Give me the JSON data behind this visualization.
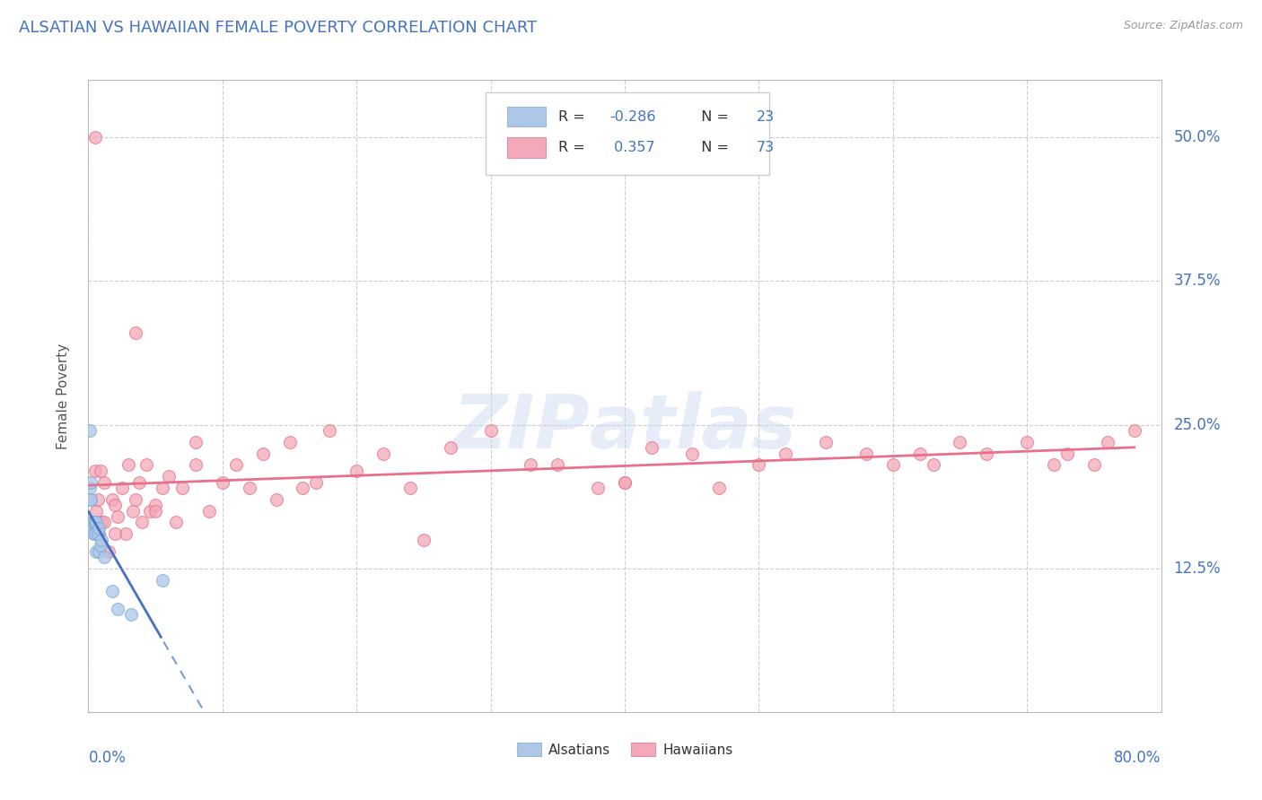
{
  "title": "ALSATIAN VS HAWAIIAN FEMALE POVERTY CORRELATION CHART",
  "source": "Source: ZipAtlas.com",
  "ylabel": "Female Poverty",
  "ytick_labels": [
    "12.5%",
    "25.0%",
    "37.5%",
    "50.0%"
  ],
  "ytick_values": [
    0.125,
    0.25,
    0.375,
    0.5
  ],
  "xlim": [
    0.0,
    0.8
  ],
  "ylim": [
    0.0,
    0.55
  ],
  "alsatian_color": "#aec6e8",
  "alsatian_edge_color": "#7aadd4",
  "hawaiian_color": "#f4a8b8",
  "hawaiian_edge_color": "#e8708a",
  "alsatian_line_color": "#4472c4",
  "hawaiian_line_color": "#e8708a",
  "background_color": "#ffffff",
  "als_x": [
    0.0008,
    0.001,
    0.0015,
    0.002,
    0.002,
    0.003,
    0.003,
    0.004,
    0.004,
    0.005,
    0.005,
    0.006,
    0.006,
    0.007,
    0.008,
    0.008,
    0.009,
    0.01,
    0.012,
    0.018,
    0.022,
    0.032,
    0.055
  ],
  "als_y": [
    0.245,
    0.195,
    0.185,
    0.185,
    0.2,
    0.165,
    0.16,
    0.155,
    0.165,
    0.155,
    0.165,
    0.14,
    0.165,
    0.155,
    0.14,
    0.16,
    0.145,
    0.15,
    0.135,
    0.105,
    0.09,
    0.085,
    0.115
  ],
  "haw_x": [
    0.003,
    0.005,
    0.006,
    0.007,
    0.008,
    0.009,
    0.01,
    0.012,
    0.015,
    0.018,
    0.02,
    0.022,
    0.025,
    0.028,
    0.03,
    0.033,
    0.035,
    0.038,
    0.04,
    0.043,
    0.046,
    0.05,
    0.055,
    0.06,
    0.065,
    0.07,
    0.08,
    0.09,
    0.1,
    0.11,
    0.12,
    0.13,
    0.14,
    0.15,
    0.16,
    0.17,
    0.18,
    0.2,
    0.22,
    0.24,
    0.27,
    0.3,
    0.33,
    0.35,
    0.38,
    0.4,
    0.42,
    0.45,
    0.47,
    0.5,
    0.52,
    0.55,
    0.58,
    0.6,
    0.62,
    0.63,
    0.65,
    0.67,
    0.7,
    0.72,
    0.73,
    0.75,
    0.76,
    0.78,
    0.005,
    0.012,
    0.02,
    0.035,
    0.05,
    0.08,
    0.25,
    0.4
  ],
  "haw_y": [
    0.16,
    0.21,
    0.175,
    0.185,
    0.155,
    0.21,
    0.165,
    0.2,
    0.14,
    0.185,
    0.18,
    0.17,
    0.195,
    0.155,
    0.215,
    0.175,
    0.185,
    0.2,
    0.165,
    0.215,
    0.175,
    0.18,
    0.195,
    0.205,
    0.165,
    0.195,
    0.215,
    0.175,
    0.2,
    0.215,
    0.195,
    0.225,
    0.185,
    0.235,
    0.195,
    0.2,
    0.245,
    0.21,
    0.225,
    0.195,
    0.23,
    0.245,
    0.215,
    0.215,
    0.195,
    0.2,
    0.23,
    0.225,
    0.195,
    0.215,
    0.225,
    0.235,
    0.225,
    0.215,
    0.225,
    0.215,
    0.235,
    0.225,
    0.235,
    0.215,
    0.225,
    0.215,
    0.235,
    0.245,
    0.5,
    0.165,
    0.155,
    0.33,
    0.175,
    0.235,
    0.15,
    0.2
  ]
}
